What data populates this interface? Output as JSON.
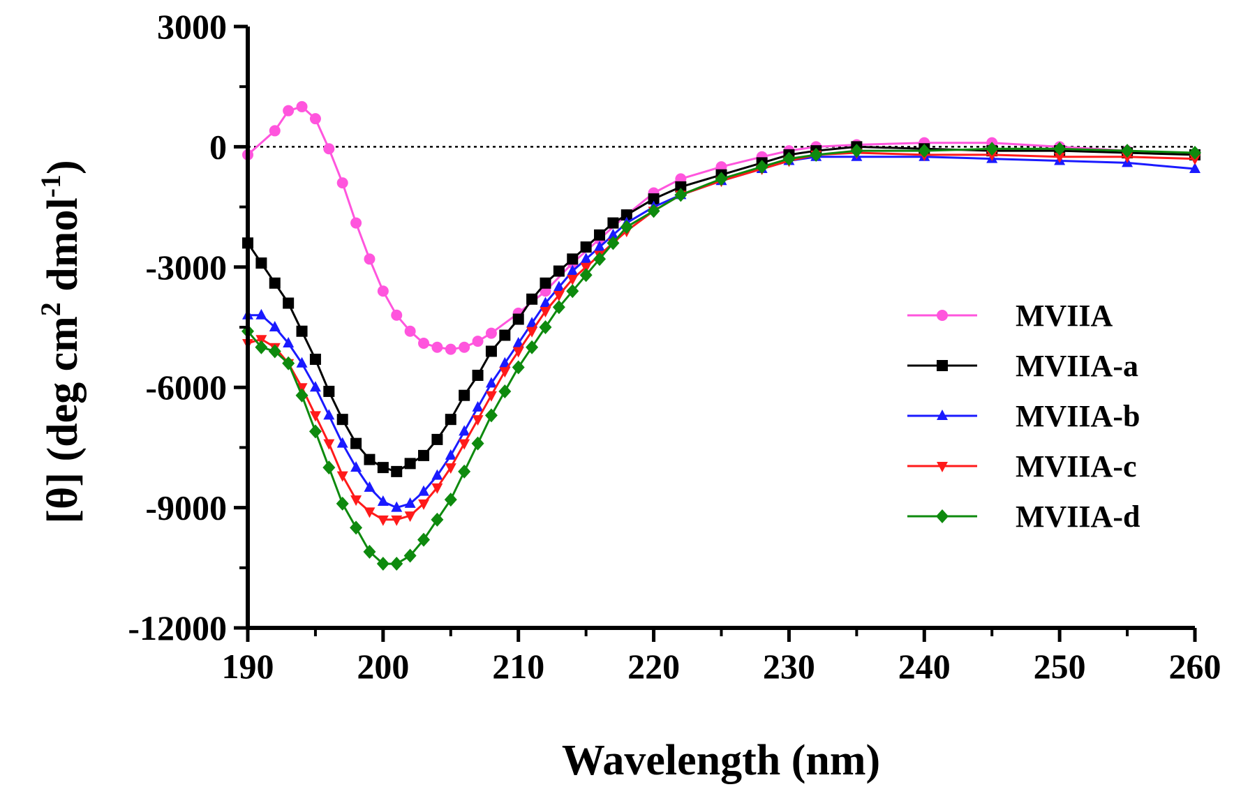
{
  "chart_data": {
    "type": "line",
    "title": "",
    "xlabel": "Wavelength (nm)",
    "ylabel_main": "[θ] (deg cm",
    "ylabel_sup1": "2",
    "ylabel_mid": " dmol",
    "ylabel_sup2": "-1",
    "ylabel_end": ")",
    "xlim": [
      190,
      260
    ],
    "ylim": [
      -12000,
      3000
    ],
    "xticks": [
      190,
      200,
      210,
      220,
      230,
      240,
      250,
      260
    ],
    "yticks": [
      3000,
      0,
      -3000,
      -6000,
      -9000,
      -12000
    ],
    "xtick_labels": [
      "190",
      "200",
      "210",
      "220",
      "230",
      "240",
      "250",
      "260"
    ],
    "ytick_labels": [
      "3000",
      "0",
      "-3000",
      "-6000",
      "-9000",
      "-12000"
    ],
    "zero_line": "dotted",
    "legend_position": "right",
    "series": [
      {
        "name": "MVIIA",
        "color": "#ff55dd",
        "marker": "circle",
        "x": [
          190,
          192,
          193,
          194,
          195,
          196,
          197,
          198,
          199,
          200,
          201,
          202,
          203,
          204,
          205,
          206,
          207,
          208,
          210,
          212,
          214,
          216,
          218,
          220,
          222,
          225,
          228,
          230,
          232,
          235,
          240,
          245,
          250,
          255,
          260
        ],
        "y": [
          -200,
          400,
          900,
          1000,
          700,
          -50,
          -900,
          -1900,
          -2800,
          -3600,
          -4200,
          -4600,
          -4900,
          -5000,
          -5050,
          -5000,
          -4850,
          -4650,
          -4150,
          -3600,
          -2900,
          -2300,
          -1700,
          -1150,
          -800,
          -500,
          -250,
          -100,
          0,
          50,
          100,
          100,
          0,
          -100,
          -200
        ]
      },
      {
        "name": "MVIIA-a",
        "color": "#000000",
        "marker": "square",
        "x": [
          190,
          191,
          192,
          193,
          194,
          195,
          196,
          197,
          198,
          199,
          200,
          201,
          202,
          203,
          204,
          205,
          206,
          207,
          208,
          209,
          210,
          211,
          212,
          213,
          214,
          215,
          216,
          217,
          218,
          220,
          222,
          225,
          228,
          230,
          232,
          235,
          240,
          245,
          250,
          255,
          260
        ],
        "y": [
          -2400,
          -2900,
          -3400,
          -3900,
          -4600,
          -5300,
          -6100,
          -6800,
          -7400,
          -7800,
          -8000,
          -8100,
          -7900,
          -7700,
          -7300,
          -6800,
          -6200,
          -5700,
          -5100,
          -4700,
          -4300,
          -3800,
          -3400,
          -3100,
          -2800,
          -2500,
          -2200,
          -1900,
          -1700,
          -1300,
          -1000,
          -700,
          -400,
          -200,
          -100,
          0,
          -50,
          -100,
          -100,
          -150,
          -200
        ]
      },
      {
        "name": "MVIIA-b",
        "color": "#1a1aff",
        "marker": "triangle",
        "x": [
          190,
          191,
          192,
          193,
          194,
          195,
          196,
          197,
          198,
          199,
          200,
          201,
          202,
          203,
          204,
          205,
          206,
          207,
          208,
          209,
          210,
          211,
          212,
          213,
          214,
          215,
          216,
          217,
          218,
          220,
          222,
          225,
          228,
          230,
          232,
          235,
          240,
          245,
          250,
          255,
          260
        ],
        "y": [
          -4200,
          -4200,
          -4500,
          -4900,
          -5400,
          -6000,
          -6700,
          -7400,
          -8000,
          -8500,
          -8850,
          -9000,
          -8900,
          -8600,
          -8200,
          -7700,
          -7100,
          -6500,
          -5900,
          -5400,
          -4900,
          -4400,
          -3900,
          -3500,
          -3100,
          -2800,
          -2500,
          -2200,
          -1900,
          -1500,
          -1200,
          -850,
          -550,
          -350,
          -250,
          -250,
          -250,
          -300,
          -350,
          -400,
          -550
        ]
      },
      {
        "name": "MVIIA-c",
        "color": "#ff1a1a",
        "marker": "triangle-down",
        "x": [
          190,
          191,
          192,
          193,
          194,
          195,
          196,
          197,
          198,
          199,
          200,
          201,
          202,
          203,
          204,
          205,
          206,
          207,
          208,
          209,
          210,
          211,
          212,
          213,
          214,
          215,
          216,
          217,
          218,
          220,
          222,
          225,
          228,
          230,
          232,
          235,
          240,
          245,
          250,
          255,
          260
        ],
        "y": [
          -4900,
          -4800,
          -5000,
          -5400,
          -6000,
          -6700,
          -7400,
          -8200,
          -8800,
          -9100,
          -9300,
          -9300,
          -9200,
          -8900,
          -8500,
          -8000,
          -7400,
          -6800,
          -6200,
          -5600,
          -5100,
          -4600,
          -4100,
          -3700,
          -3300,
          -3000,
          -2700,
          -2400,
          -2100,
          -1600,
          -1200,
          -850,
          -550,
          -350,
          -200,
          -150,
          -200,
          -200,
          -250,
          -250,
          -300
        ]
      },
      {
        "name": "MVIIA-d",
        "color": "#0e8a0e",
        "marker": "diamond",
        "x": [
          190,
          191,
          192,
          193,
          194,
          195,
          196,
          197,
          198,
          199,
          200,
          201,
          202,
          203,
          204,
          205,
          206,
          207,
          208,
          209,
          210,
          211,
          212,
          213,
          214,
          215,
          216,
          217,
          218,
          220,
          222,
          225,
          228,
          230,
          232,
          235,
          240,
          245,
          250,
          255,
          260
        ],
        "y": [
          -4600,
          -5000,
          -5100,
          -5400,
          -6200,
          -7100,
          -8000,
          -8900,
          -9500,
          -10100,
          -10400,
          -10400,
          -10200,
          -9800,
          -9300,
          -8800,
          -8100,
          -7400,
          -6700,
          -6100,
          -5500,
          -5000,
          -4500,
          -4000,
          -3600,
          -3200,
          -2800,
          -2400,
          -2000,
          -1600,
          -1200,
          -800,
          -500,
          -300,
          -200,
          -100,
          -100,
          -50,
          -50,
          -100,
          -150
        ]
      }
    ]
  }
}
